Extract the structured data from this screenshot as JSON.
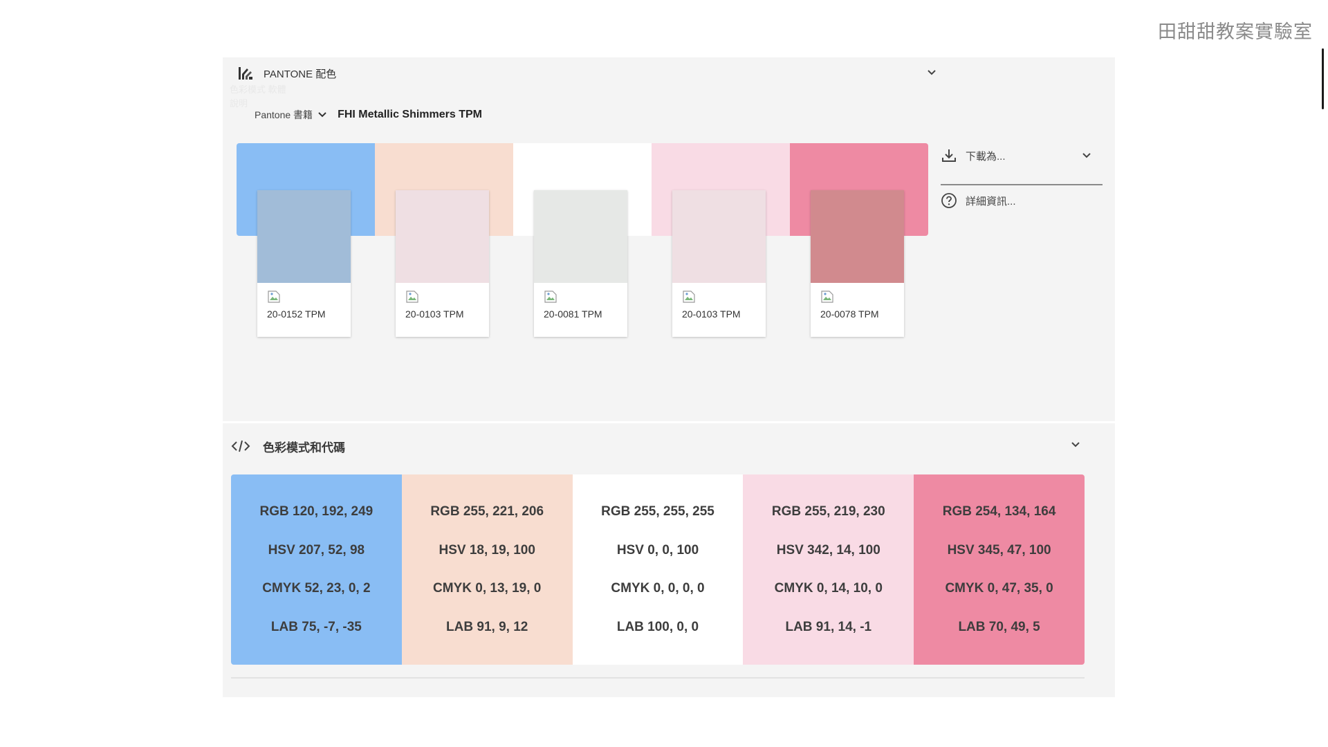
{
  "watermark": "田甜甜教案實驗室",
  "pantone": {
    "title": "PANTONE 配色",
    "book_label": "Pantone 書籍",
    "book_name": "FHI Metallic Shimmers TPM",
    "faded_lines": [
      "色彩模式 軟體",
      "說明"
    ],
    "strip_colors": [
      "#89bdf4",
      "#f8ddd0",
      "#ffffff",
      "#f9dbe5",
      "#ee8aa3"
    ],
    "cards": [
      {
        "code": "20-0152 TPM",
        "chip_color": "#a1bcd8"
      },
      {
        "code": "20-0103 TPM",
        "chip_color": "#efdfe3"
      },
      {
        "code": "20-0081 TPM",
        "chip_color": "#e6e8e6"
      },
      {
        "code": "20-0103 TPM",
        "chip_color": "#efdfe3"
      },
      {
        "code": "20-0078 TPM",
        "chip_color": "#d18a8e"
      }
    ]
  },
  "actions": {
    "download_label": "下載為...",
    "details_label": "詳細資訊..."
  },
  "codes": {
    "title": "色彩模式和代碼",
    "columns": [
      {
        "color": "#89bdf4",
        "rgb": "RGB 120, 192, 249",
        "hsv": "HSV 207, 52, 98",
        "cmyk": "CMYK 52, 23, 0, 2",
        "lab": "LAB 75, -7, -35"
      },
      {
        "color": "#f8ddd0",
        "rgb": "RGB 255, 221, 206",
        "hsv": "HSV 18, 19, 100",
        "cmyk": "CMYK 0, 13, 19, 0",
        "lab": "LAB 91, 9, 12"
      },
      {
        "color": "#ffffff",
        "rgb": "RGB 255, 255, 255",
        "hsv": "HSV 0, 0, 100",
        "cmyk": "CMYK 0, 0, 0, 0",
        "lab": "LAB 100, 0, 0"
      },
      {
        "color": "#f9dbe5",
        "rgb": "RGB 255, 219, 230",
        "hsv": "HSV 342, 14, 100",
        "cmyk": "CMYK 0, 14, 10, 0",
        "lab": "LAB 91, 14, -1"
      },
      {
        "color": "#ee8aa3",
        "rgb": "RGB 254, 134, 164",
        "hsv": "HSV 345, 47, 100",
        "cmyk": "CMYK 0, 47, 35, 0",
        "lab": "LAB 70, 49, 5"
      }
    ]
  }
}
